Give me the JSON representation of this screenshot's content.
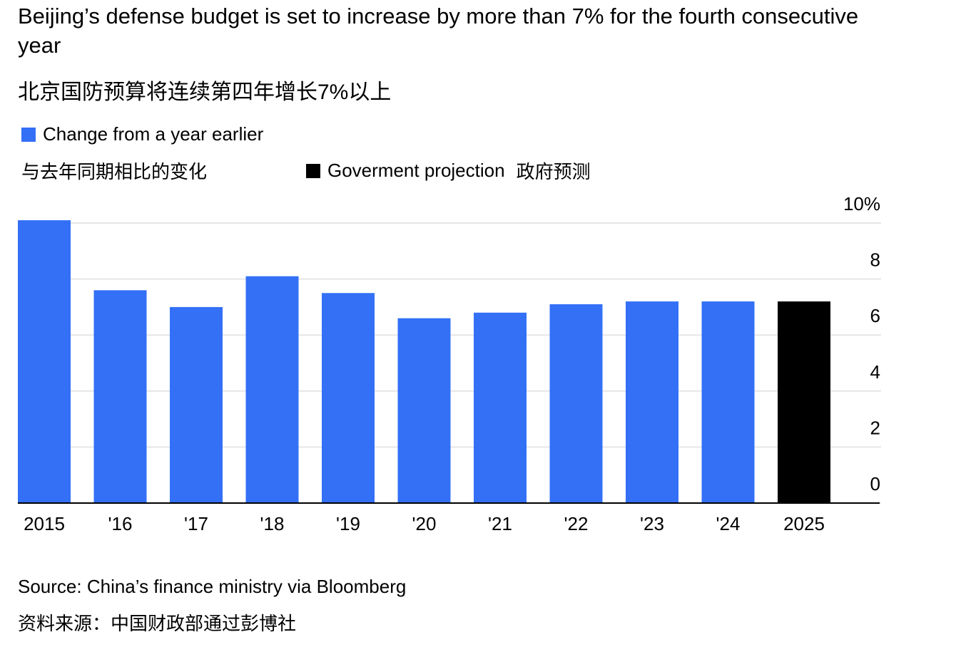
{
  "chart_data": {
    "type": "bar",
    "title": "Beijing’s defense budget is set to increase by more than 7% for the fourth consecutive year",
    "subtitle": "北京国防预算将连续第四年增长7%以上",
    "categories": [
      "2015",
      "'16",
      "'17",
      "'18",
      "'19",
      "'20",
      "'21",
      "'22",
      "'23",
      "'24",
      "2025"
    ],
    "series": [
      {
        "name": "Change from a year earlier",
        "name_zh": "与去年同期相比的变化",
        "color": "#3370f6",
        "values": [
          10.1,
          7.6,
          7.0,
          8.1,
          7.5,
          6.6,
          6.8,
          7.1,
          7.2,
          7.2,
          null
        ]
      },
      {
        "name": "Goverment projection",
        "name_zh": "政府预测",
        "color": "#000000",
        "values": [
          null,
          null,
          null,
          null,
          null,
          null,
          null,
          null,
          null,
          null,
          7.2
        ]
      }
    ],
    "ylim": [
      0,
      10
    ],
    "yticks": [
      0,
      2,
      4,
      6,
      8,
      {
        "value": 10,
        "label": "10%"
      }
    ],
    "grid": true,
    "source": "Source: China’s finance ministry via Bloomberg",
    "source_zh": "资料来源：中国财政部通过彭博社"
  }
}
